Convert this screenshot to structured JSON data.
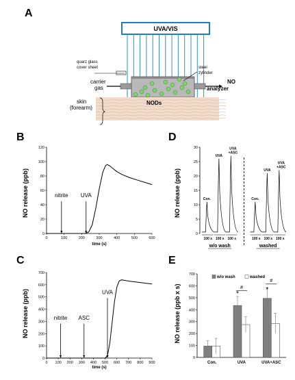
{
  "panels": {
    "A": {
      "letter": "A",
      "lamp_label": "UVA/VIS",
      "quarz_label_1": "quarz glass",
      "quarz_label_2": "cover sheet",
      "steel_label_1": "steel",
      "steel_label_2": "zylinder",
      "carrier_label_1": "carrier",
      "carrier_label_2": "gas",
      "no_label": "NO",
      "analyzer_label": "analyzer",
      "skin_label_1": "skin",
      "skin_label_2": "(forearm)",
      "nods_label": "NODs",
      "colors": {
        "lamp_border": "#1a7fc6",
        "uv_lines": "#2a8fd6",
        "nods_fill": "#7ed36b",
        "skin": "#f1dccb"
      }
    },
    "B": {
      "letter": "B",
      "ylabel": "NO release (ppb)",
      "xlabel": "time (s)",
      "annotations": [
        "nitrite",
        "UVA"
      ]
    },
    "C": {
      "letter": "C",
      "ylabel": "NO release (ppb)",
      "xlabel": "time (s)",
      "annotations": [
        "nitrite",
        "ASC",
        "UVA"
      ]
    },
    "D": {
      "letter": "D",
      "ylabel": "NO release (ppb)",
      "peak_labels": [
        "Con.",
        "UVA",
        "UVA\n+ASC",
        "Con.",
        "UVA",
        "UVA\n+ASC"
      ],
      "segment_labels": [
        "100 s",
        "100 s",
        "100 s",
        "100 s",
        "100 s",
        "100 s"
      ],
      "group_labels": [
        "w/o wash",
        "washed"
      ]
    },
    "E": {
      "letter": "E",
      "ylabel": "NO release (ppb x s)",
      "legend": [
        "w/o wash",
        "washed"
      ],
      "markers": [
        "*",
        "#",
        "*",
        "#"
      ],
      "colors": {
        "wo_wash": "#7f7f7f",
        "washed": "#ffffff"
      }
    }
  },
  "chart_data": [
    {
      "id": "B",
      "type": "line",
      "xlabel": "time (s)",
      "ylabel": "NO release (ppb)",
      "xlim": [
        0,
        600
      ],
      "ylim": [
        0,
        120
      ],
      "xticks": [
        0,
        100,
        200,
        300,
        400,
        500,
        600
      ],
      "yticks": [
        0,
        20,
        40,
        60,
        80,
        100,
        120
      ],
      "series": [
        {
          "x": [
            0,
            100,
            220,
            240,
            260,
            280,
            300,
            320,
            335,
            345,
            360,
            380,
            400,
            430,
            470,
            520,
            560,
            600
          ],
          "y": [
            0,
            0,
            0,
            2,
            12,
            35,
            62,
            85,
            94,
            96,
            94,
            90,
            86,
            82,
            78,
            74,
            71,
            68
          ]
        }
      ],
      "annotations": [
        {
          "text": "nitrite",
          "x": 85
        },
        {
          "text": "UVA",
          "x": 225
        }
      ]
    },
    {
      "id": "C",
      "type": "line",
      "xlabel": "time (s)",
      "ylabel": "NO release (ppb)",
      "xlim": [
        0,
        900
      ],
      "ylim": [
        0,
        700
      ],
      "xticks": [
        0,
        100,
        200,
        300,
        400,
        500,
        600,
        700,
        800,
        900
      ],
      "yticks": [
        0,
        100,
        200,
        300,
        400,
        500,
        600,
        700
      ],
      "series": [
        {
          "x": [
            0,
            100,
            300,
            500,
            520,
            540,
            560,
            580,
            600,
            620,
            640,
            660,
            700,
            750,
            800,
            850,
            900
          ],
          "y": [
            0,
            0,
            0,
            0,
            20,
            120,
            290,
            460,
            580,
            630,
            640,
            637,
            630,
            624,
            618,
            612,
            606
          ]
        }
      ],
      "annotations": [
        {
          "text": "nitrite",
          "x": 120
        },
        {
          "text": "ASC",
          "x": 320
        },
        {
          "text": "UVA",
          "x": 520
        }
      ]
    },
    {
      "id": "D",
      "type": "line",
      "ylabel": "NO release (ppb)",
      "ylim": [
        0,
        30
      ],
      "yticks": [
        0,
        5,
        10,
        15,
        20,
        25,
        30
      ],
      "peaks": [
        {
          "label": "Con.",
          "value": 11
        },
        {
          "label": "UVA",
          "value": 26
        },
        {
          "label": "UVA+ASC",
          "value": 27
        },
        {
          "label": "Con.",
          "value": 11
        },
        {
          "label": "UVA",
          "value": 21
        },
        {
          "label": "UVA+ASC",
          "value": 22
        }
      ],
      "groups": [
        "w/o wash",
        "washed"
      ]
    },
    {
      "id": "E",
      "type": "bar",
      "ylabel": "NO release (ppb x s)",
      "ylim": [
        0,
        700
      ],
      "yticks": [
        0,
        100,
        200,
        300,
        400,
        500,
        600,
        700
      ],
      "categories": [
        "Con.",
        "UVA",
        "UVA+ASC"
      ],
      "series": [
        {
          "name": "w/o wash",
          "values": [
            95,
            435,
            495
          ],
          "errors": [
            45,
            75,
            85
          ]
        },
        {
          "name": "washed",
          "values": [
            95,
            275,
            285
          ],
          "errors": [
            65,
            65,
            85
          ]
        }
      ]
    }
  ]
}
